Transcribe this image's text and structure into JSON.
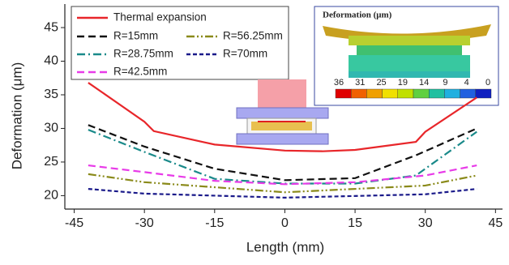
{
  "chart_data": {
    "type": "line",
    "xlabel": "Length (mm)",
    "ylabel": "Deformation (μm)",
    "xlim": [
      -47,
      46.5
    ],
    "ylim": [
      18,
      48.5
    ],
    "xticks": [
      -45,
      -30,
      -15,
      0,
      15,
      30,
      45
    ],
    "yticks": [
      20,
      25,
      30,
      35,
      40,
      45
    ],
    "series": [
      {
        "name": "Thermal expansion",
        "color": "#e8262a",
        "linestyle": "solid",
        "x": [
          -42,
          -30,
          -28,
          -15,
          0,
          8,
          15,
          28,
          30,
          41
        ],
        "values": [
          36.8,
          31,
          29.6,
          27.6,
          26.7,
          26.6,
          26.8,
          28,
          29.5,
          34.6
        ]
      },
      {
        "name": "R=15mm",
        "color": "#111111",
        "linestyle": "dashed",
        "x": [
          -42,
          -30,
          -15,
          0,
          15,
          28,
          41
        ],
        "values": [
          30.5,
          27.3,
          24,
          22.3,
          22.6,
          26,
          30
        ]
      },
      {
        "name": "R=28.75mm",
        "color": "#1a8a8a",
        "linestyle": "dashdot",
        "x": [
          -42,
          -30,
          -15,
          0,
          15,
          28,
          41
        ],
        "values": [
          29.8,
          26.5,
          22.5,
          21.8,
          21.8,
          23,
          29.5
        ]
      },
      {
        "name": "R=42.5mm",
        "color": "#e83be8",
        "linestyle": "dashed",
        "x": [
          -42,
          -30,
          -15,
          0,
          15,
          30,
          41
        ],
        "values": [
          24.5,
          23.5,
          22.2,
          21.7,
          22,
          23,
          24.5
        ]
      },
      {
        "name": "R=56.25mm",
        "color": "#8a8a1a",
        "linestyle": "dashdotdot",
        "x": [
          -42,
          -30,
          0,
          30,
          41
        ],
        "values": [
          23.2,
          22,
          20.5,
          21.5,
          23
        ]
      },
      {
        "name": "R=70mm",
        "color": "#1a1a8a",
        "linestyle": "shortdash",
        "x": [
          -42,
          -30,
          0,
          30,
          41
        ],
        "values": [
          21,
          20.3,
          19.7,
          20.2,
          21
        ]
      }
    ],
    "inset": {
      "title": "Deformation (μm)",
      "scale_labels": [
        36,
        31,
        25,
        19,
        14,
        9,
        4,
        0
      ]
    }
  }
}
